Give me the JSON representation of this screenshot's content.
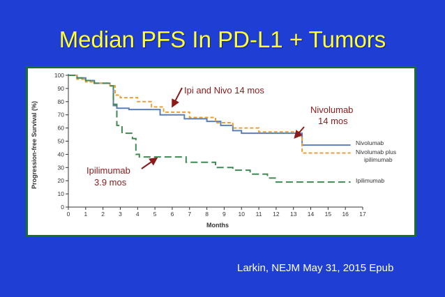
{
  "slide": {
    "title": "Median PFS In PD-L1 + Tumors",
    "citation": "Larkin, NEJM  May 31, 2015 Epub"
  },
  "colors": {
    "background": "#1f3fd4",
    "title": "#ffff33",
    "nivolumab": "#5b7fb8",
    "combo": "#e8a13a",
    "ipilimumab": "#3e8a52",
    "annotation": "#8b1a1a"
  },
  "chart_data": {
    "type": "line",
    "xlabel": "Months",
    "ylabel": "Progression-free Survival (%)",
    "xlim": [
      0,
      17
    ],
    "ylim": [
      0,
      100
    ],
    "x_ticks": [
      0,
      1,
      2,
      3,
      4,
      5,
      6,
      7,
      8,
      9,
      10,
      11,
      12,
      13,
      14,
      15,
      16,
      17
    ],
    "y_ticks": [
      0,
      10,
      20,
      30,
      40,
      50,
      60,
      70,
      80,
      90,
      100
    ],
    "grid": false,
    "series": [
      {
        "name": "Nivolumab",
        "style": "solid",
        "points": [
          [
            0,
            100
          ],
          [
            0.5,
            98
          ],
          [
            1,
            96
          ],
          [
            1.5,
            94
          ],
          [
            2.4,
            92
          ],
          [
            2.6,
            77
          ],
          [
            2.8,
            75
          ],
          [
            3.5,
            74
          ],
          [
            5.3,
            70
          ],
          [
            6.7,
            67
          ],
          [
            8,
            65
          ],
          [
            8.8,
            62
          ],
          [
            9.5,
            58
          ],
          [
            10,
            56
          ],
          [
            13.4,
            56
          ],
          [
            13.5,
            47
          ],
          [
            16.3,
            47
          ]
        ]
      },
      {
        "name": "Nivolumab plus ipilimumab",
        "style": "dashed",
        "points": [
          [
            0,
            100
          ],
          [
            0.5,
            97
          ],
          [
            1,
            95
          ],
          [
            1.5,
            94
          ],
          [
            2.4,
            92
          ],
          [
            2.7,
            85
          ],
          [
            3,
            83
          ],
          [
            4,
            80
          ],
          [
            4.8,
            76
          ],
          [
            5.5,
            72
          ],
          [
            7,
            68
          ],
          [
            8.5,
            64
          ],
          [
            9.5,
            60
          ],
          [
            11,
            57
          ],
          [
            13.4,
            53
          ],
          [
            13.5,
            41
          ],
          [
            16.3,
            41
          ]
        ]
      },
      {
        "name": "Ipilimumab",
        "style": "long-dash",
        "points": [
          [
            0,
            100
          ],
          [
            0.5,
            98
          ],
          [
            1,
            96
          ],
          [
            1.5,
            94
          ],
          [
            2.4,
            92
          ],
          [
            2.6,
            78
          ],
          [
            2.8,
            62
          ],
          [
            3.1,
            56
          ],
          [
            3.7,
            52
          ],
          [
            3.9,
            40
          ],
          [
            4.1,
            38
          ],
          [
            6.8,
            34
          ],
          [
            8.5,
            30
          ],
          [
            9.5,
            28
          ],
          [
            10.5,
            25
          ],
          [
            11.5,
            22
          ],
          [
            12,
            19
          ],
          [
            16.3,
            19
          ]
        ]
      }
    ],
    "annotations": {
      "combo": "Ipi and Nivo  14 mos",
      "nivo_line1": "Nivolumab",
      "nivo_line2": "14 mos",
      "ipi_line1": "Ipilimumab",
      "ipi_line2": "3.9 mos"
    },
    "legend_labels": {
      "nivolumab": "Nivolumab",
      "combo_line1": "Nivolumab plus",
      "combo_line2": "ipilimumab",
      "ipilimumab": "Ipilimumab"
    }
  }
}
